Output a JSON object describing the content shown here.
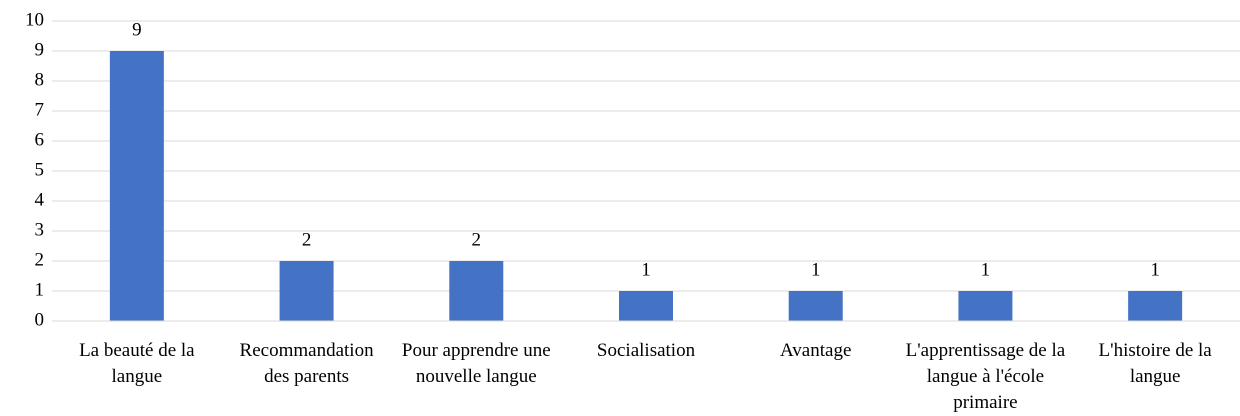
{
  "chart_data": {
    "type": "bar",
    "categories": [
      "La beauté de la langue",
      "Recommandation des parents",
      "Pour apprendre une nouvelle langue",
      "Socialisation",
      "Avantage",
      "L'apprentissage de la langue à l'école primaire",
      "L'histoire de la langue"
    ],
    "values": [
      9,
      2,
      2,
      1,
      1,
      1,
      1
    ],
    "color": "#4472c4",
    "ylim": [
      0,
      10
    ],
    "yticks": [
      0,
      1,
      2,
      3,
      4,
      5,
      6,
      7,
      8,
      9,
      10
    ],
    "grid": true
  }
}
